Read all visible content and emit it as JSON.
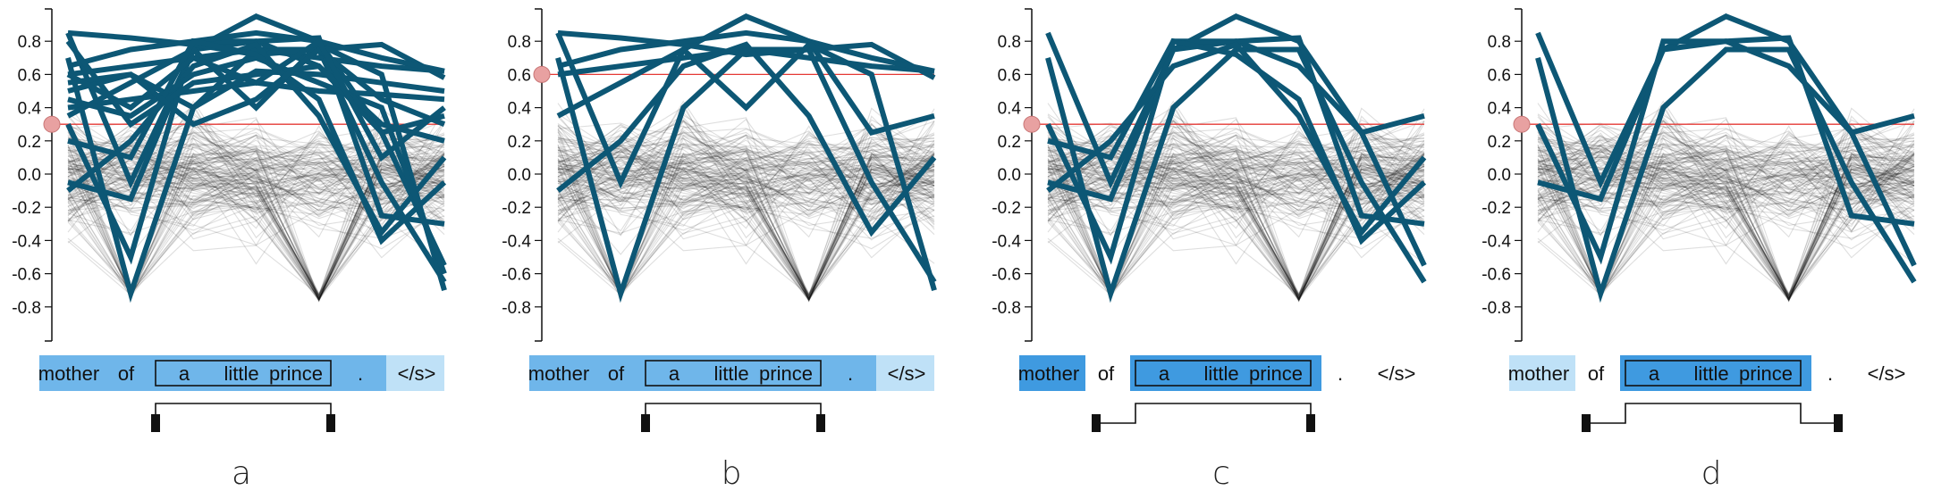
{
  "colors": {
    "highlight": "#0d5775",
    "background_lines": "#000000",
    "threshold_line": "#e53935",
    "threshold_handle": "#e8a1a1",
    "word_cell_dark": "#6fb6ea",
    "word_cell_medium": "#3f9ae0",
    "word_cell_light": "#bfe1f7"
  },
  "chart_data": [
    {
      "type": "line",
      "label": "a",
      "ylim": [
        -1.0,
        1.0
      ],
      "yticks": [
        "0.8",
        "0.6",
        "0.4",
        "0.2",
        "0.0",
        "-0.2",
        "-0.4",
        "-0.6",
        "-0.8"
      ],
      "threshold": 0.3,
      "grid": false,
      "words": [
        "mother",
        "of",
        "a",
        "little",
        "prince",
        ".",
        "</s>"
      ],
      "word_shading": [
        "dark",
        "dark",
        "dark",
        "dark",
        "dark",
        "dark",
        "light"
      ],
      "selected_span": [
        "a",
        "little",
        "prince"
      ],
      "bracket": {
        "left_pad": 0,
        "right_pad": 0
      },
      "highlighted_count": 16
    },
    {
      "type": "line",
      "label": "b",
      "ylim": [
        -1.0,
        1.0
      ],
      "yticks": [
        "0.8",
        "0.6",
        "0.4",
        "0.2",
        "0.0",
        "-0.2",
        "-0.4",
        "-0.6",
        "-0.8"
      ],
      "threshold": 0.6,
      "grid": false,
      "words": [
        "mother",
        "of",
        "a",
        "little",
        "prince",
        ".",
        "</s>"
      ],
      "word_shading": [
        "dark",
        "dark",
        "dark",
        "dark",
        "dark",
        "dark",
        "light"
      ],
      "selected_span": [
        "a",
        "little",
        "prince"
      ],
      "bracket": {
        "left_pad": 0,
        "right_pad": 0
      },
      "highlighted_count": 7
    },
    {
      "type": "line",
      "label": "c",
      "ylim": [
        -1.0,
        1.0
      ],
      "yticks": [
        "0.8",
        "0.6",
        "0.4",
        "0.2",
        "0.0",
        "-0.2",
        "-0.4",
        "-0.6",
        "-0.8"
      ],
      "threshold": 0.3,
      "grid": false,
      "words": [
        "mother",
        "of",
        "a",
        "little",
        "prince",
        ".",
        "</s>"
      ],
      "word_shading": [
        "medium",
        "none",
        "medium",
        "medium",
        "medium",
        "none",
        "none"
      ],
      "selected_span": [
        "a",
        "little",
        "prince"
      ],
      "bracket": {
        "left_pad": 1,
        "right_pad": 0
      },
      "highlighted_count": 6
    },
    {
      "type": "line",
      "label": "d",
      "ylim": [
        -1.0,
        1.0
      ],
      "yticks": [
        "0.8",
        "0.6",
        "0.4",
        "0.2",
        "0.0",
        "-0.2",
        "-0.4",
        "-0.6",
        "-0.8"
      ],
      "threshold": 0.3,
      "grid": false,
      "words": [
        "mother",
        "of",
        "a",
        "little",
        "prince",
        ".",
        "</s>"
      ],
      "word_shading": [
        "light",
        "none",
        "medium",
        "medium",
        "medium",
        "none",
        "none"
      ],
      "selected_span": [
        "a",
        "little",
        "prince"
      ],
      "bracket": {
        "left_pad": 1,
        "right_pad": 1
      },
      "highlighted_count": 4
    }
  ]
}
